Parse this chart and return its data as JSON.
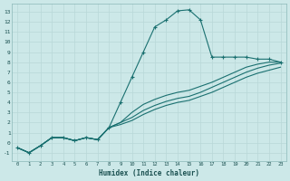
{
  "xlabel": "Humidex (Indice chaleur)",
  "bg_color": "#cce8e8",
  "line_color": "#1a7070",
  "grid_color": "#b8d8d8",
  "xlim": [
    -0.5,
    23.5
  ],
  "ylim": [
    -1.8,
    13.8
  ],
  "xticks": [
    0,
    1,
    2,
    3,
    4,
    5,
    6,
    7,
    8,
    9,
    10,
    11,
    12,
    13,
    14,
    15,
    16,
    17,
    18,
    19,
    20,
    21,
    22,
    23
  ],
  "yticks": [
    -1,
    0,
    1,
    2,
    3,
    4,
    5,
    6,
    7,
    8,
    9,
    10,
    11,
    12,
    13
  ],
  "series": [
    {
      "x": [
        0,
        1,
        2,
        3,
        4,
        5,
        6,
        7,
        8,
        9,
        10,
        11,
        12,
        13,
        14,
        15,
        16,
        17,
        18,
        19,
        20,
        21,
        22,
        23
      ],
      "y": [
        -0.5,
        -1.0,
        -0.3,
        0.5,
        0.5,
        0.2,
        0.5,
        0.3,
        1.5,
        4.0,
        6.5,
        9.0,
        11.5,
        12.2,
        13.1,
        13.2,
        12.2,
        8.5,
        8.5,
        8.5,
        8.5,
        8.3,
        8.3,
        8.0
      ],
      "marker": true
    },
    {
      "x": [
        0,
        1,
        2,
        3,
        4,
        5,
        6,
        7,
        8,
        9,
        10,
        11,
        12,
        13,
        14,
        15,
        16,
        17,
        18,
        19,
        20,
        21,
        22,
        23
      ],
      "y": [
        -0.5,
        -1.0,
        -0.3,
        0.5,
        0.5,
        0.2,
        0.5,
        0.3,
        1.5,
        2.0,
        3.0,
        3.8,
        4.3,
        4.7,
        5.0,
        5.2,
        5.6,
        6.0,
        6.5,
        7.0,
        7.5,
        7.8,
        8.0,
        8.0
      ],
      "marker": false
    },
    {
      "x": [
        0,
        1,
        2,
        3,
        4,
        5,
        6,
        7,
        8,
        9,
        10,
        11,
        12,
        13,
        14,
        15,
        16,
        17,
        18,
        19,
        20,
        21,
        22,
        23
      ],
      "y": [
        -0.5,
        -1.0,
        -0.3,
        0.5,
        0.5,
        0.2,
        0.5,
        0.3,
        1.5,
        2.0,
        2.5,
        3.2,
        3.7,
        4.1,
        4.4,
        4.6,
        5.0,
        5.5,
        6.0,
        6.5,
        7.0,
        7.4,
        7.7,
        7.9
      ],
      "marker": false
    },
    {
      "x": [
        0,
        1,
        2,
        3,
        4,
        5,
        6,
        7,
        8,
        9,
        10,
        11,
        12,
        13,
        14,
        15,
        16,
        17,
        18,
        19,
        20,
        21,
        22,
        23
      ],
      "y": [
        -0.5,
        -1.0,
        -0.3,
        0.5,
        0.5,
        0.2,
        0.5,
        0.3,
        1.5,
        1.8,
        2.2,
        2.8,
        3.3,
        3.7,
        4.0,
        4.2,
        4.6,
        5.0,
        5.5,
        6.0,
        6.5,
        6.9,
        7.2,
        7.5
      ],
      "marker": false
    }
  ]
}
